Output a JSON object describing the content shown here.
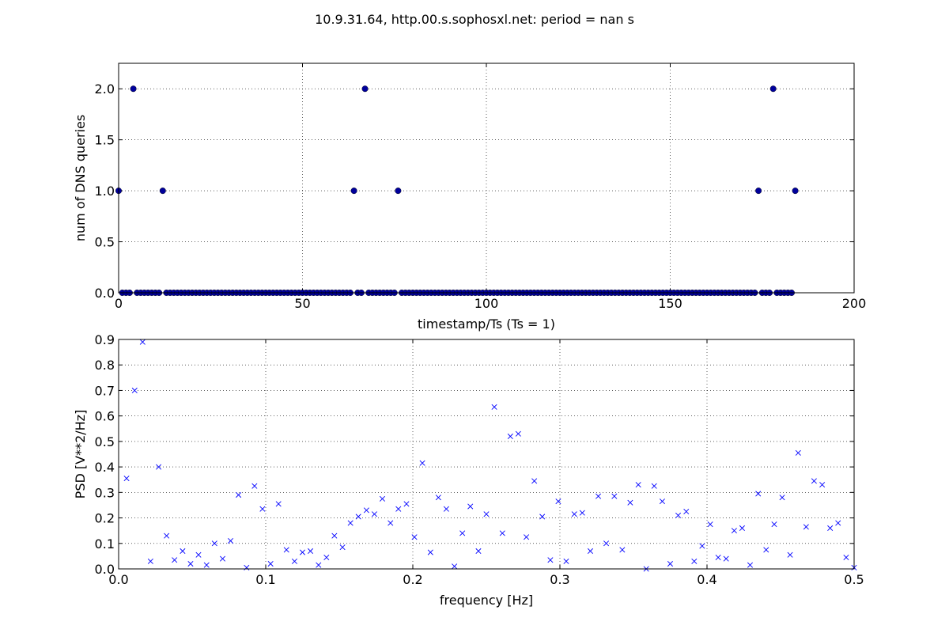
{
  "figure": {
    "title": "10.9.31.64, http.00.s.sophosxl.net: period = nan s"
  },
  "chart_data": [
    {
      "type": "scatter",
      "xlabel": "timestamp/Ts (Ts = 1)",
      "ylabel": "num of DNS queries",
      "xlim": [
        0,
        200
      ],
      "ylim": [
        0,
        2.25
      ],
      "xticks": [
        0,
        50,
        100,
        150,
        200
      ],
      "yticks": [
        0.0,
        0.5,
        1.0,
        1.5,
        2.0
      ],
      "xtick_labels": [
        "0",
        "50",
        "100",
        "150",
        "200"
      ],
      "ytick_labels": [
        "0.0",
        "0.5",
        "1.0",
        "1.5",
        "2.0"
      ],
      "grid": true,
      "marker": "circle",
      "color": "#00009b",
      "x_count": 184,
      "nonzero_points": [
        {
          "x": 0,
          "y": 1
        },
        {
          "x": 4,
          "y": 2
        },
        {
          "x": 12,
          "y": 1
        },
        {
          "x": 64,
          "y": 1
        },
        {
          "x": 67,
          "y": 2
        },
        {
          "x": 76,
          "y": 1
        },
        {
          "x": 174,
          "y": 1
        },
        {
          "x": 178,
          "y": 2
        },
        {
          "x": 184,
          "y": 1
        }
      ],
      "default_y": 0
    },
    {
      "type": "scatter",
      "xlabel": "frequency [Hz]",
      "ylabel": "PSD [V**2/Hz]",
      "xlim": [
        0,
        0.5
      ],
      "ylim": [
        0,
        0.9
      ],
      "xticks": [
        0.0,
        0.1,
        0.2,
        0.3,
        0.4,
        0.5
      ],
      "yticks": [
        0.0,
        0.1,
        0.2,
        0.3,
        0.4,
        0.5,
        0.6,
        0.7,
        0.8,
        0.9
      ],
      "xtick_labels": [
        "0.0",
        "0.1",
        "0.2",
        "0.3",
        "0.4",
        "0.5"
      ],
      "ytick_labels": [
        "0.0",
        "0.1",
        "0.2",
        "0.3",
        "0.4",
        "0.5",
        "0.6",
        "0.7",
        "0.8",
        "0.9"
      ],
      "grid": true,
      "marker": "x",
      "color": "#0000ff",
      "x": [
        0.0054,
        0.0109,
        0.0163,
        0.0217,
        0.0272,
        0.0326,
        0.038,
        0.0435,
        0.0489,
        0.0543,
        0.0598,
        0.0652,
        0.0707,
        0.0761,
        0.0815,
        0.087,
        0.0924,
        0.0978,
        0.1033,
        0.1087,
        0.1141,
        0.1196,
        0.125,
        0.1304,
        0.1359,
        0.1413,
        0.1467,
        0.1522,
        0.1576,
        0.163,
        0.1685,
        0.1739,
        0.1793,
        0.1848,
        0.1902,
        0.1957,
        0.2011,
        0.2065,
        0.212,
        0.2174,
        0.2228,
        0.2283,
        0.2337,
        0.2391,
        0.2446,
        0.25,
        0.2554,
        0.2609,
        0.2663,
        0.2717,
        0.2772,
        0.2826,
        0.288,
        0.2935,
        0.2989,
        0.3043,
        0.3098,
        0.3152,
        0.3207,
        0.3261,
        0.3315,
        0.337,
        0.3424,
        0.3478,
        0.3533,
        0.3587,
        0.3641,
        0.3696,
        0.375,
        0.3804,
        0.3859,
        0.3913,
        0.3967,
        0.4022,
        0.4076,
        0.413,
        0.4185,
        0.4239,
        0.4293,
        0.4348,
        0.4402,
        0.4457,
        0.4511,
        0.4565,
        0.462,
        0.4674,
        0.4728,
        0.4783,
        0.4837,
        0.4891,
        0.4946,
        0.5
      ],
      "y": [
        0.355,
        0.7,
        0.89,
        0.03,
        0.4,
        0.13,
        0.035,
        0.07,
        0.02,
        0.055,
        0.015,
        0.1,
        0.04,
        0.11,
        0.29,
        0.005,
        0.325,
        0.235,
        0.02,
        0.255,
        0.075,
        0.03,
        0.065,
        0.07,
        0.015,
        0.045,
        0.13,
        0.085,
        0.18,
        0.205,
        0.23,
        0.215,
        0.275,
        0.18,
        0.235,
        0.255,
        0.125,
        0.415,
        0.065,
        0.28,
        0.235,
        0.01,
        0.14,
        0.245,
        0.07,
        0.215,
        0.635,
        0.14,
        0.52,
        0.53,
        0.125,
        0.345,
        0.205,
        0.035,
        0.265,
        0.03,
        0.215,
        0.22,
        0.07,
        0.285,
        0.1,
        0.285,
        0.075,
        0.26,
        0.33,
        0.0,
        0.325,
        0.265,
        0.02,
        0.21,
        0.225,
        0.03,
        0.09,
        0.175,
        0.045,
        0.04,
        0.15,
        0.16,
        0.015,
        0.295,
        0.075,
        0.175,
        0.28,
        0.055,
        0.455,
        0.165,
        0.345,
        0.33,
        0.16,
        0.18,
        0.045,
        0.005
      ]
    }
  ]
}
